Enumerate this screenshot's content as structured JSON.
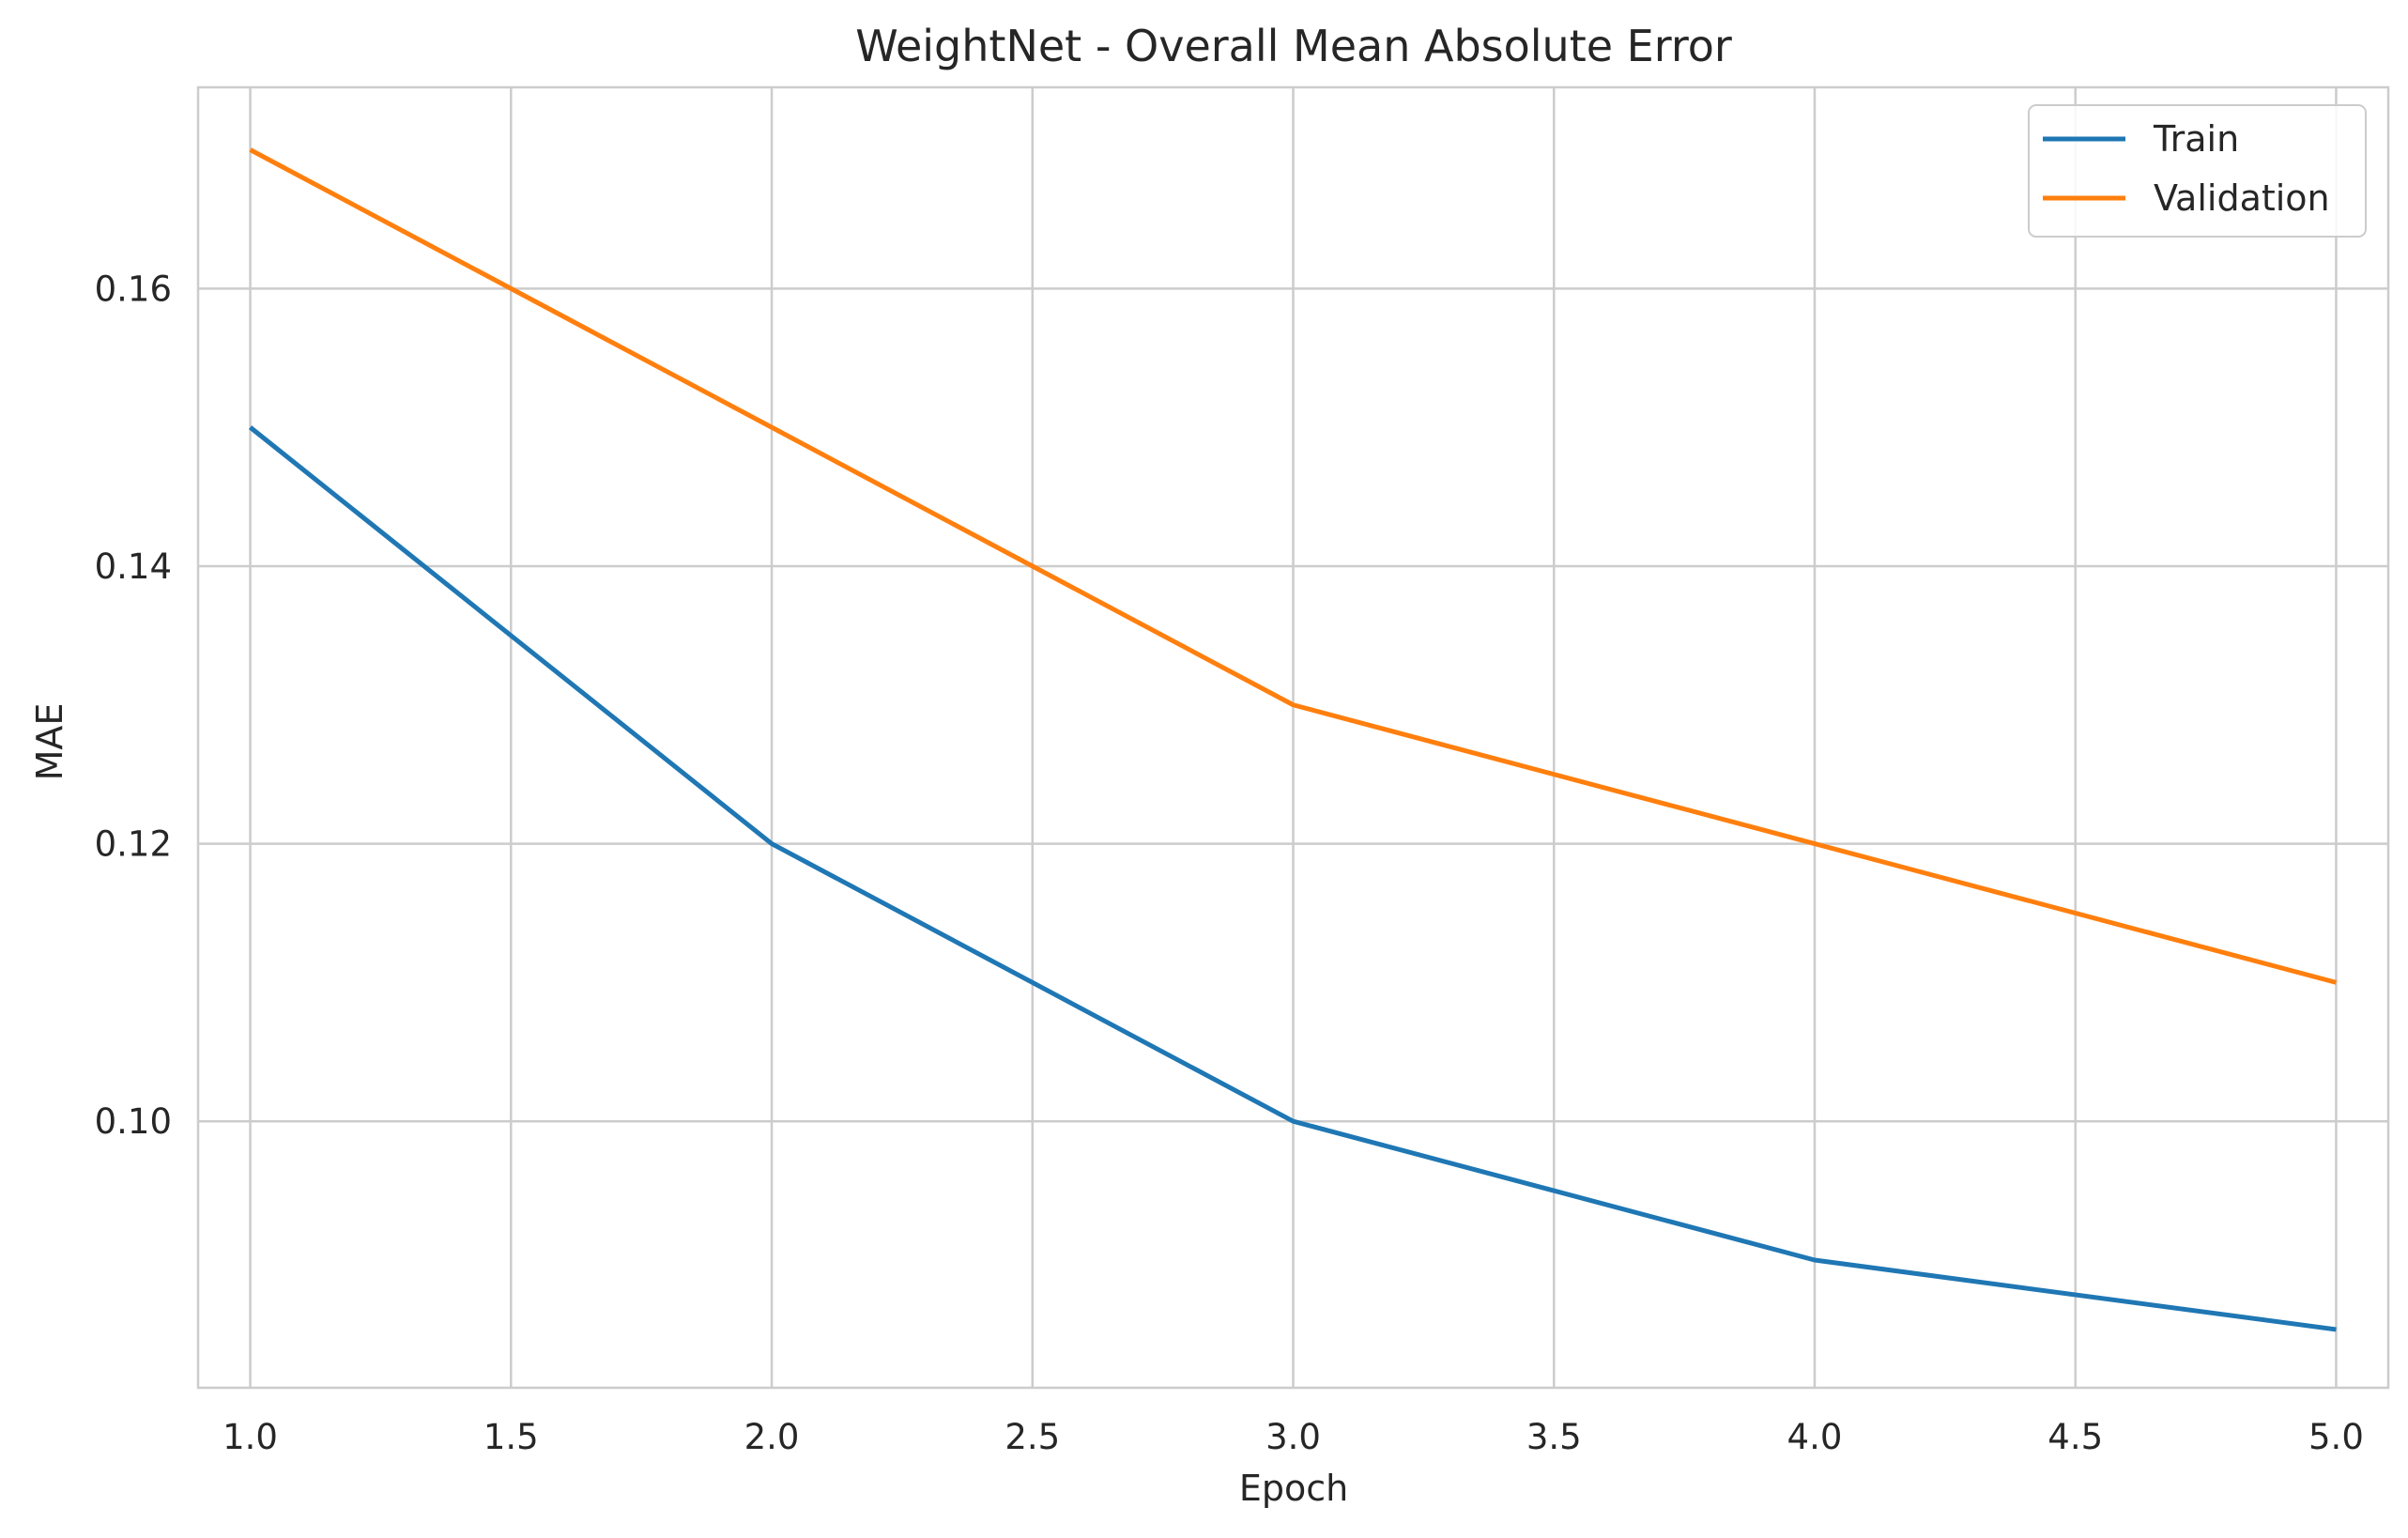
{
  "chart_data": {
    "type": "line",
    "title": "WeightNet - Overall Mean Absolute Error",
    "xlabel": "Epoch",
    "ylabel": "MAE",
    "x": [
      1,
      2,
      3,
      4,
      5
    ],
    "xlim": [
      0.9,
      5.1
    ],
    "ylim": [
      0.0808,
      0.1745
    ],
    "xticks": [
      1.0,
      1.5,
      2.0,
      2.5,
      3.0,
      3.5,
      4.0,
      4.5,
      5.0
    ],
    "xtick_labels": [
      "1.0",
      "1.5",
      "2.0",
      "2.5",
      "3.0",
      "3.5",
      "4.0",
      "4.5",
      "5.0"
    ],
    "yticks": [
      0.1,
      0.12,
      0.14,
      0.16
    ],
    "ytick_labels": [
      "0.10",
      "0.12",
      "0.14",
      "0.16"
    ],
    "grid": true,
    "legend_position": "top-right",
    "series": [
      {
        "name": "Train",
        "color": "#1f77b4",
        "values": [
          0.15,
          0.12,
          0.1,
          0.09,
          0.085
        ]
      },
      {
        "name": "Validation",
        "color": "#ff7f0e",
        "values": [
          0.17,
          0.15,
          0.13,
          0.12,
          0.11
        ]
      }
    ]
  }
}
